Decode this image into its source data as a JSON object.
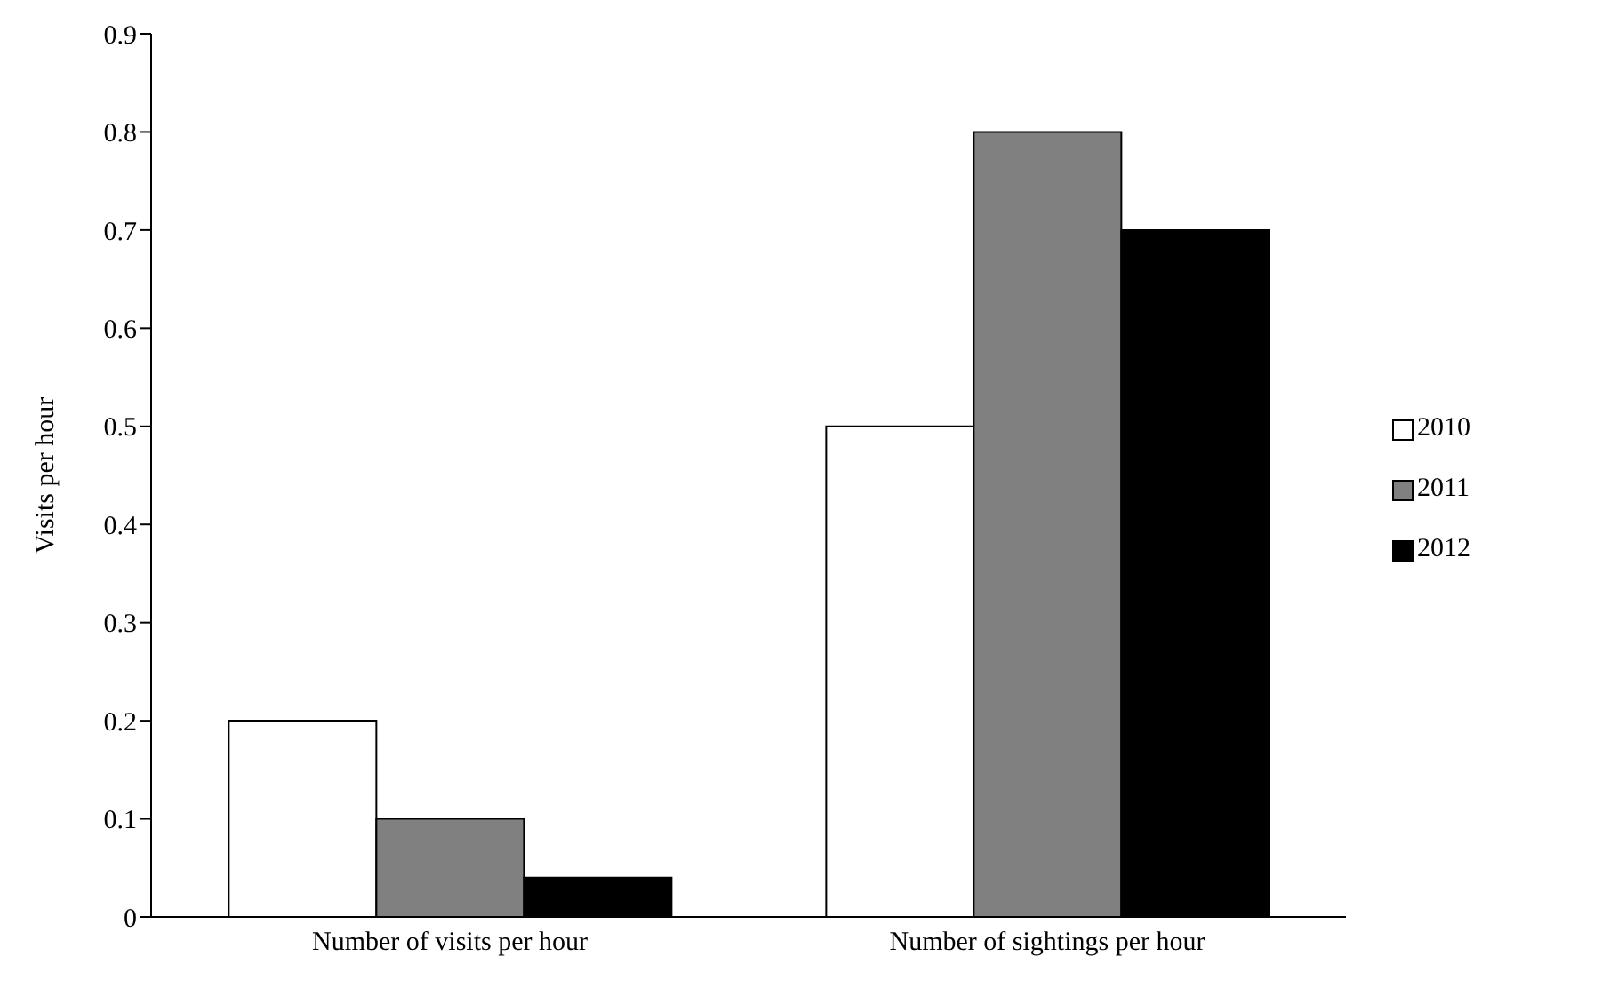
{
  "chart_data": {
    "type": "bar",
    "ylabel": "Visits per hour",
    "categories": [
      "Number of visits per hour",
      "Number of sightings per hour"
    ],
    "series": [
      {
        "name": "2010",
        "color": "#ffffff",
        "values": [
          0.2,
          0.5
        ]
      },
      {
        "name": "2011",
        "color": "#808080",
        "values": [
          0.1,
          0.8
        ]
      },
      {
        "name": "2012",
        "color": "#000000",
        "values": [
          0.04,
          0.7
        ]
      }
    ],
    "ylim": [
      0,
      0.9
    ],
    "yticks": [
      0,
      0.1,
      0.2,
      0.3,
      0.4,
      0.5,
      0.6,
      0.7,
      0.8,
      0.9
    ],
    "grid": false,
    "legend": "right"
  }
}
